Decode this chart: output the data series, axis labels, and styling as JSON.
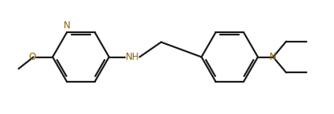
{
  "bg_color": "#ffffff",
  "line_color": "#1a1a1a",
  "heteroatom_color": "#8B6000",
  "bond_lw": 1.6,
  "figsize": [
    4.25,
    1.45
  ],
  "dpi": 100,
  "xlim": [
    0.0,
    8.5
  ],
  "ylim": [
    0.4,
    3.1
  ]
}
